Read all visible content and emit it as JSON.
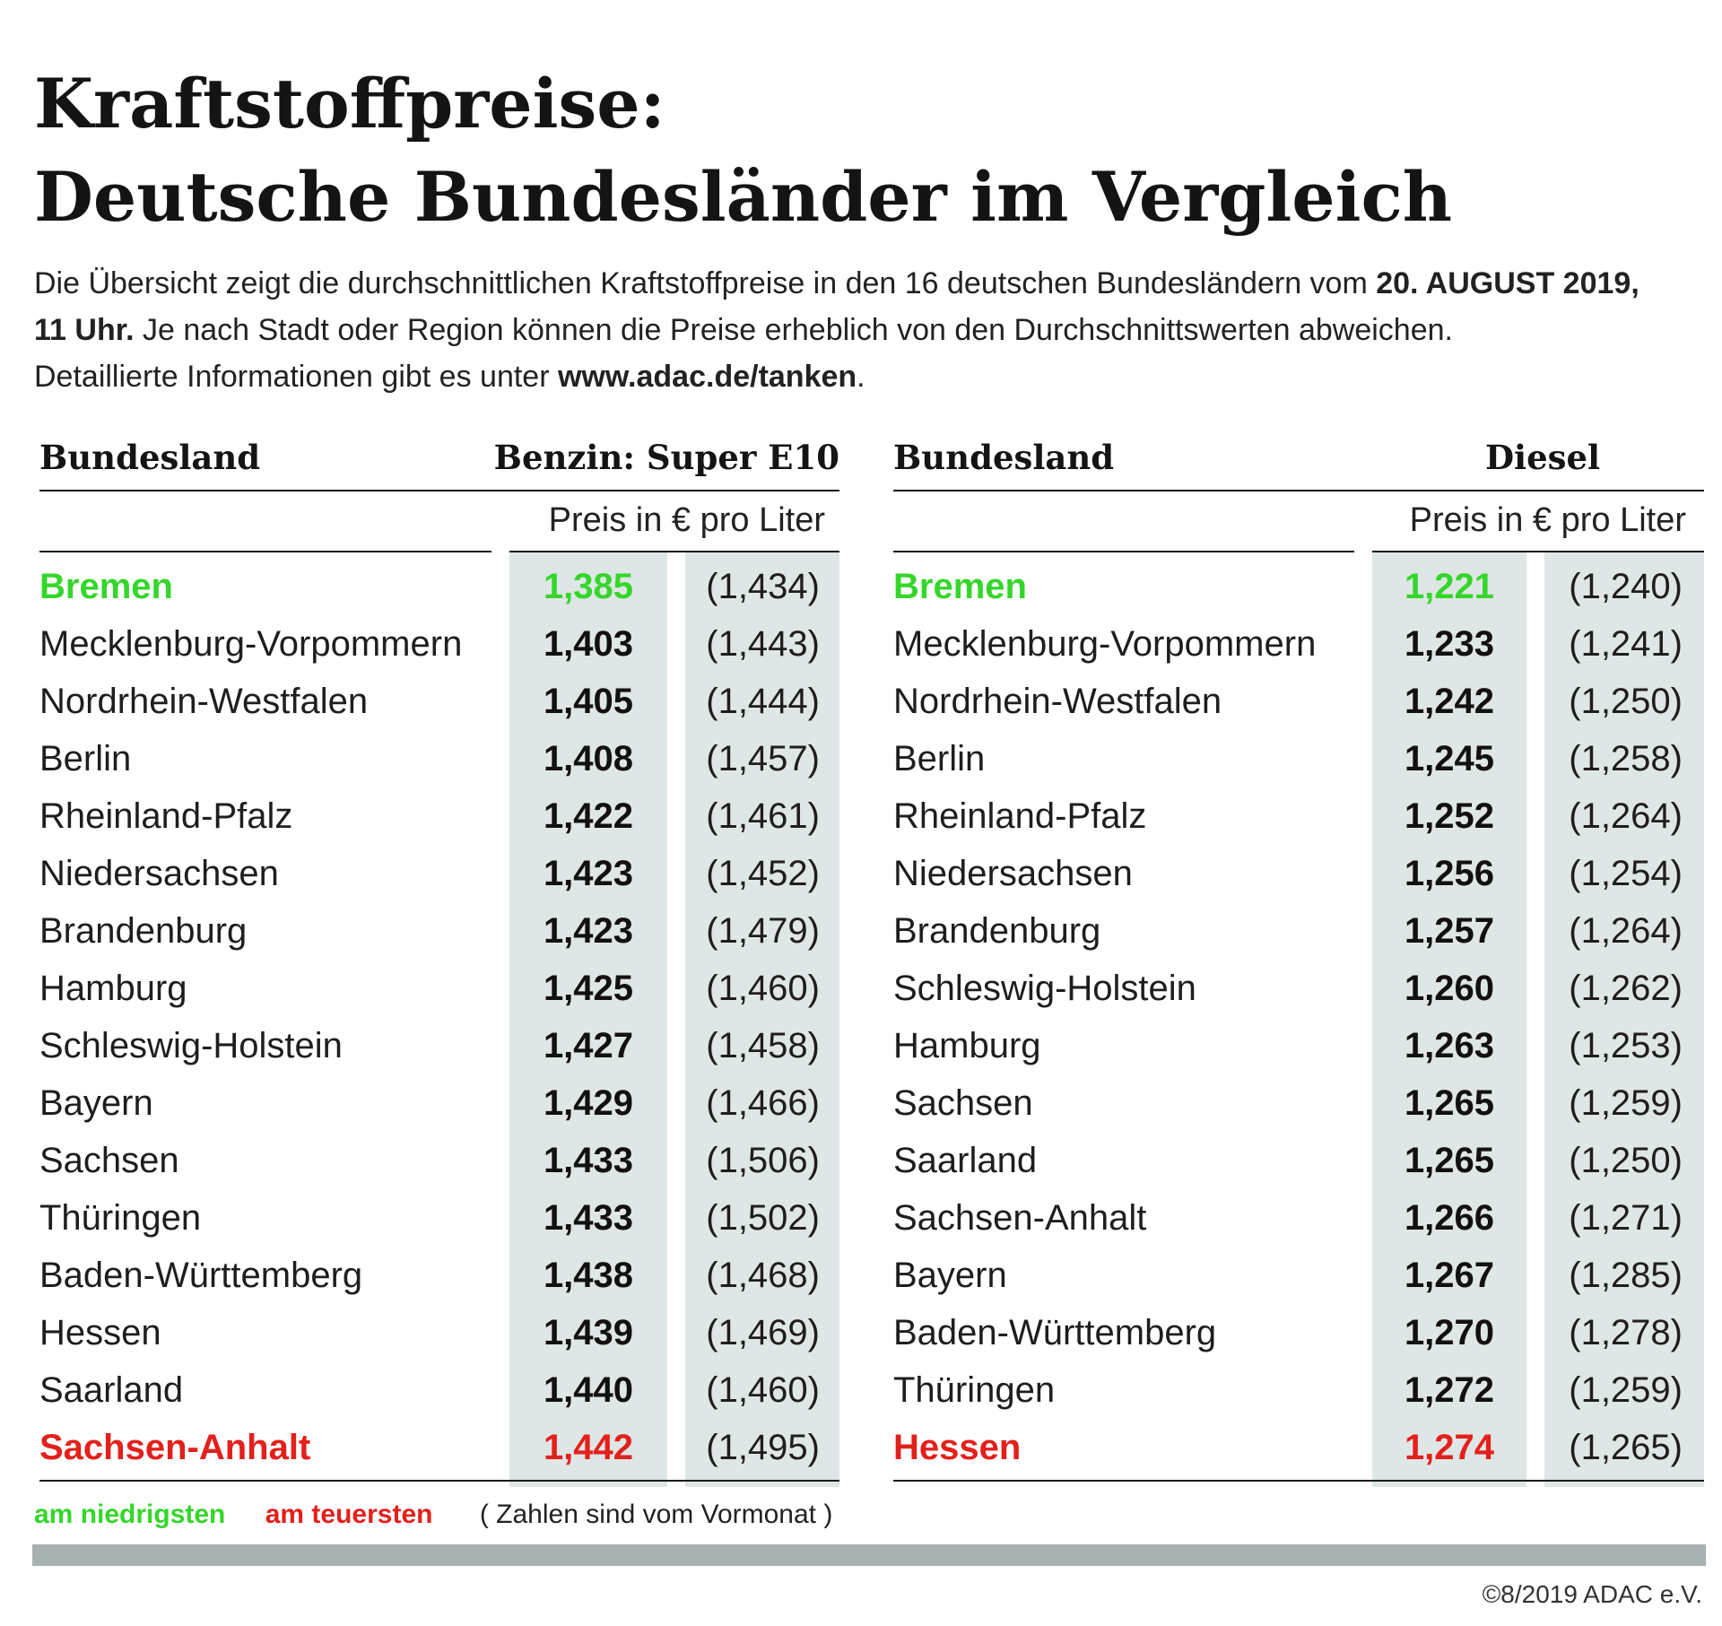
{
  "title": {
    "line1": "Kraftstoffpreise:",
    "line2": "Deutsche Bundesländer im Vergleich"
  },
  "intro": {
    "part1": "Die Übersicht zeigt die durchschnittlichen Kraftstoffpreise in den 16 deutschen Bundesländern vom ",
    "date": "20. AUGUST 2019,",
    "time": "11 Uhr.",
    "part2": " Je nach Stadt oder Region können die Preise erheblich von den Durchschnittswerten abweichen.",
    "part3": "Detaillierte Informationen gibt es unter ",
    "url": "www.adac.de/tanken",
    "part4": "."
  },
  "benzin": {
    "col_state": "Bundesland",
    "col_fuel": "Benzin:  Super E10",
    "unit": "Preis in € pro Liter",
    "rows": [
      {
        "state": "Bremen",
        "price": "1,385",
        "prev": "(1,434)"
      },
      {
        "state": "Mecklenburg-Vorpommern",
        "price": "1,403",
        "prev": "(1,443)"
      },
      {
        "state": "Nordrhein-Westfalen",
        "price": "1,405",
        "prev": "(1,444)"
      },
      {
        "state": "Berlin",
        "price": "1,408",
        "prev": "(1,457)"
      },
      {
        "state": "Rheinland-Pfalz",
        "price": "1,422",
        "prev": "(1,461)"
      },
      {
        "state": "Niedersachsen",
        "price": "1,423",
        "prev": "(1,452)"
      },
      {
        "state": "Brandenburg",
        "price": "1,423",
        "prev": "(1,479)"
      },
      {
        "state": "Hamburg",
        "price": "1,425",
        "prev": "(1,460)"
      },
      {
        "state": "Schleswig-Holstein",
        "price": "1,427",
        "prev": "(1,458)"
      },
      {
        "state": "Bayern",
        "price": "1,429",
        "prev": "(1,466)"
      },
      {
        "state": "Sachsen",
        "price": "1,433",
        "prev": "(1,506)"
      },
      {
        "state": "Thüringen",
        "price": "1,433",
        "prev": "(1,502)"
      },
      {
        "state": "Baden-Württemberg",
        "price": "1,438",
        "prev": "(1,468)"
      },
      {
        "state": "Hessen",
        "price": "1,439",
        "prev": "(1,469)"
      },
      {
        "state": "Saarland",
        "price": "1,440",
        "prev": "(1,460)"
      },
      {
        "state": "Sachsen-Anhalt",
        "price": "1,442",
        "prev": "(1,495)"
      }
    ]
  },
  "diesel": {
    "col_state": "Bundesland",
    "col_fuel": "Diesel",
    "unit": "Preis in € pro Liter",
    "rows": [
      {
        "state": "Bremen",
        "price": "1,221",
        "prev": "(1,240)"
      },
      {
        "state": "Mecklenburg-Vorpommern",
        "price": "1,233",
        "prev": "(1,241)"
      },
      {
        "state": "Nordrhein-Westfalen",
        "price": "1,242",
        "prev": "(1,250)"
      },
      {
        "state": "Berlin",
        "price": "1,245",
        "prev": "(1,258)"
      },
      {
        "state": "Rheinland-Pfalz",
        "price": "1,252",
        "prev": "(1,264)"
      },
      {
        "state": "Niedersachsen",
        "price": "1,256",
        "prev": "(1,254)"
      },
      {
        "state": "Brandenburg",
        "price": "1,257",
        "prev": "(1,264)"
      },
      {
        "state": "Schleswig-Holstein",
        "price": "1,260",
        "prev": "(1,262)"
      },
      {
        "state": "Hamburg",
        "price": "1,263",
        "prev": "(1,253)"
      },
      {
        "state": "Sachsen",
        "price": "1,265",
        "prev": "(1,259)"
      },
      {
        "state": "Saarland",
        "price": "1,265",
        "prev": "(1,250)"
      },
      {
        "state": "Sachsen-Anhalt",
        "price": "1,266",
        "prev": "(1,271)"
      },
      {
        "state": "Bayern",
        "price": "1,267",
        "prev": "(1,285)"
      },
      {
        "state": "Baden-Württemberg",
        "price": "1,270",
        "prev": "(1,278)"
      },
      {
        "state": "Thüringen",
        "price": "1,272",
        "prev": "(1,259)"
      },
      {
        "state": "Hessen",
        "price": "1,274",
        "prev": "(1,265)"
      }
    ]
  },
  "legend": {
    "low": "am niedrigsten",
    "high": "am teuersten",
    "note": "( Zahlen sind vom Vormonat )"
  },
  "colors": {
    "low": "#35d62a",
    "high": "#e3201b",
    "shade": "#dfe6e6",
    "bar": "#a8b1b1"
  },
  "copyright": "©8/2019 ADAC e.V."
}
